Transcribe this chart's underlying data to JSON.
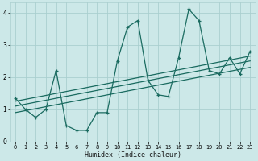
{
  "xlabel": "Humidex (Indice chaleur)",
  "bg_color": "#cce8e8",
  "grid_color": "#aacfcf",
  "line_color": "#1a6b60",
  "xlim": [
    -0.5,
    23.5
  ],
  "ylim": [
    0,
    4.3
  ],
  "xticks": [
    0,
    1,
    2,
    3,
    4,
    5,
    6,
    7,
    8,
    9,
    10,
    11,
    12,
    13,
    14,
    15,
    16,
    17,
    18,
    19,
    20,
    21,
    22,
    23
  ],
  "yticks": [
    0,
    1,
    2,
    3,
    4
  ],
  "main_x": [
    0,
    1,
    2,
    3,
    4,
    5,
    6,
    7,
    8,
    9,
    10,
    11,
    12,
    13,
    14,
    15,
    16,
    17,
    18,
    19,
    20,
    21,
    22,
    23
  ],
  "main_y": [
    1.35,
    1.0,
    0.75,
    1.0,
    2.2,
    0.5,
    0.35,
    0.35,
    0.9,
    0.9,
    2.5,
    3.55,
    3.75,
    1.9,
    1.45,
    1.4,
    2.6,
    4.1,
    3.75,
    2.2,
    2.1,
    2.6,
    2.1,
    2.8
  ],
  "trend1_x": [
    0,
    23
  ],
  "trend1_y": [
    1.1,
    2.5
  ],
  "trend2_x": [
    0,
    23
  ],
  "trend2_y": [
    1.25,
    2.65
  ],
  "trend3_x": [
    0,
    23
  ],
  "trend3_y": [
    0.9,
    2.3
  ],
  "xlabel_fontsize": 6.0,
  "tick_fontsize": 4.8,
  "ytick_fontsize": 5.5,
  "linewidth": 0.9,
  "marker_size": 3.0
}
